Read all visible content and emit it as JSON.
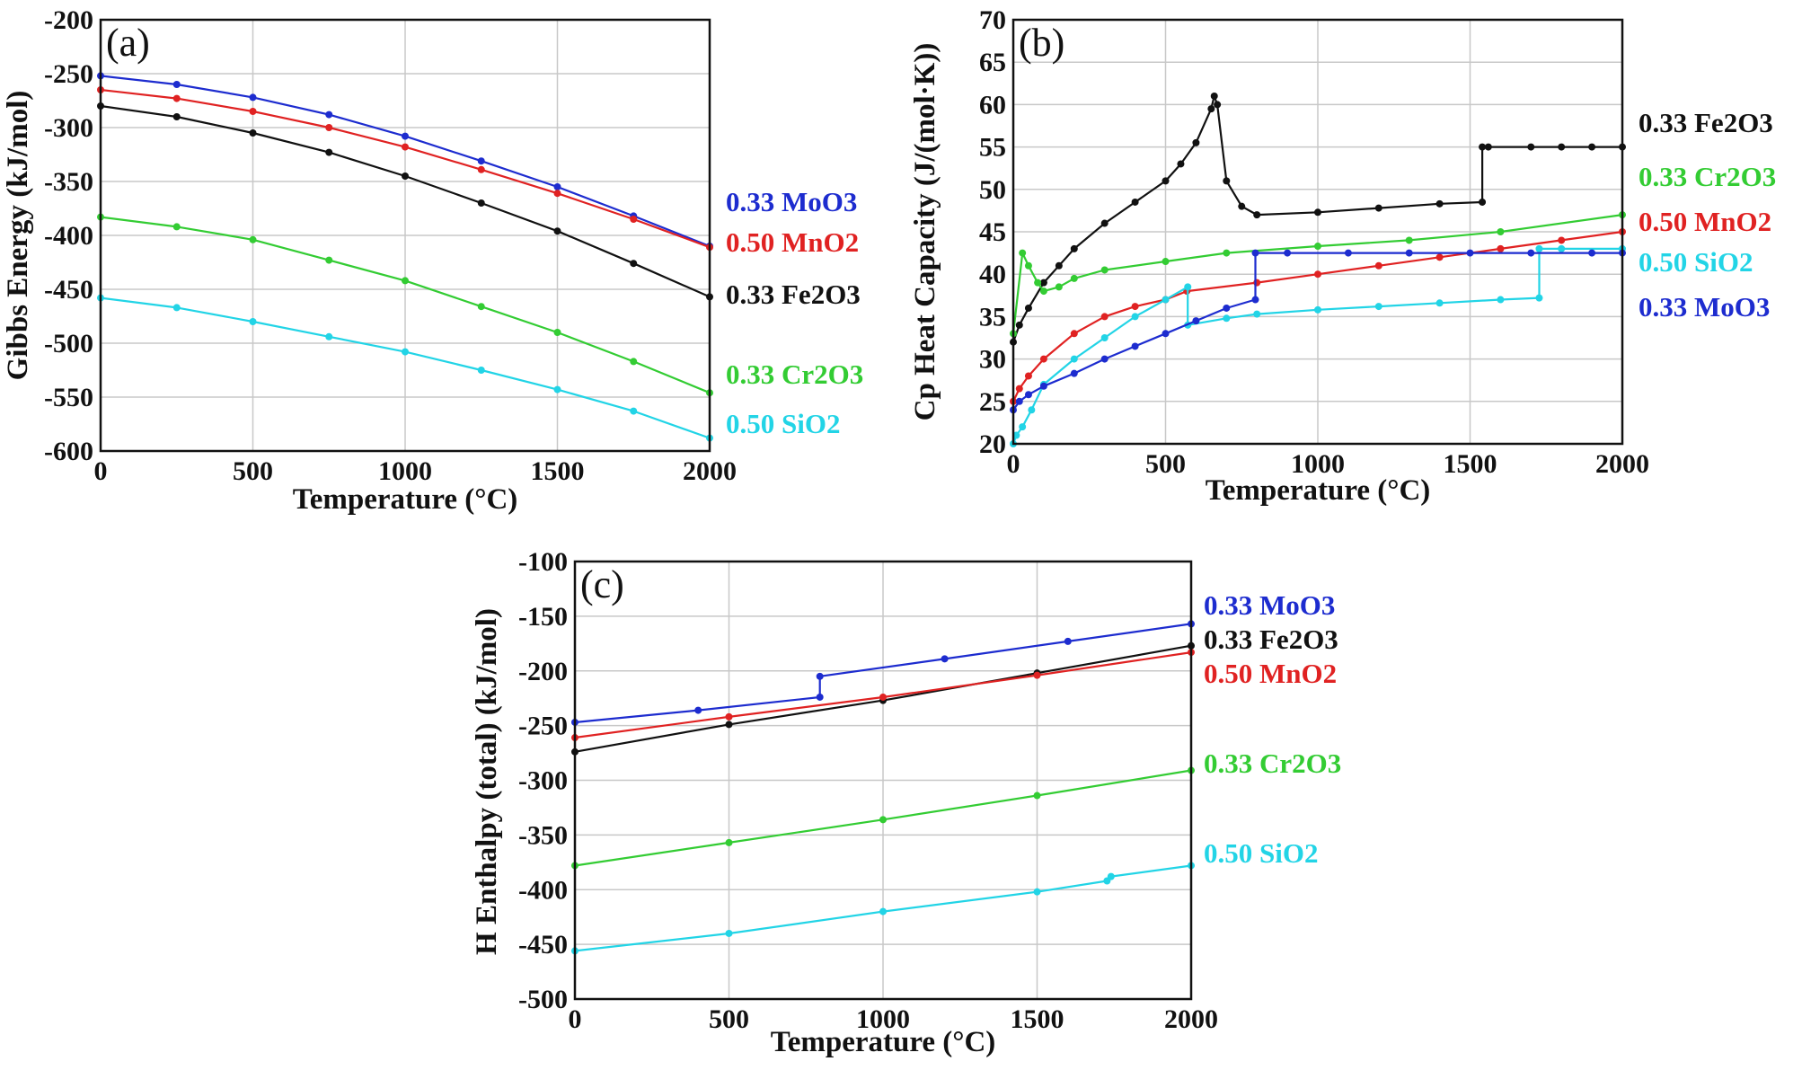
{
  "colors": {
    "MoO3": "#1d2ccf",
    "MnO2": "#e02222",
    "Fe2O3": "#111111",
    "Cr2O3": "#33cc33",
    "SiO2": "#22d4e6"
  },
  "chart_data": [
    {
      "type": "line",
      "panel_label": "(a)",
      "xlabel": "Temperature (°C)",
      "ylabel": "Gibbs Energy (kJ/mol)",
      "xlim": [
        0,
        2000
      ],
      "ylim": [
        -600,
        -200
      ],
      "xticks": [
        0,
        500,
        1000,
        1500,
        2000
      ],
      "yticks": [
        -600,
        -550,
        -500,
        -450,
        -400,
        -350,
        -300,
        -250,
        -200
      ],
      "grid": true,
      "series": [
        {
          "name": "0.33 MoO3",
          "color_key": "MoO3",
          "x": [
            0,
            250,
            500,
            750,
            1000,
            1250,
            1500,
            1750,
            2000
          ],
          "y": [
            -252,
            -260,
            -272,
            -288,
            -308,
            -331,
            -355,
            -382,
            -410
          ]
        },
        {
          "name": "0.50 MnO2",
          "color_key": "MnO2",
          "x": [
            0,
            250,
            500,
            750,
            1000,
            1250,
            1500,
            1750,
            2000
          ],
          "y": [
            -265,
            -273,
            -285,
            -300,
            -318,
            -339,
            -361,
            -385,
            -411
          ]
        },
        {
          "name": "0.33 Fe2O3",
          "color_key": "Fe2O3",
          "x": [
            0,
            250,
            500,
            750,
            1000,
            1250,
            1500,
            1750,
            2000
          ],
          "y": [
            -280,
            -290,
            -305,
            -323,
            -345,
            -370,
            -396,
            -426,
            -457
          ]
        },
        {
          "name": "0.33 Cr2O3",
          "color_key": "Cr2O3",
          "x": [
            0,
            250,
            500,
            750,
            1000,
            1250,
            1500,
            1750,
            2000
          ],
          "y": [
            -383,
            -392,
            -404,
            -423,
            -442,
            -466,
            -490,
            -517,
            -546
          ]
        },
        {
          "name": "0.50 SiO2",
          "color_key": "SiO2",
          "x": [
            0,
            250,
            500,
            750,
            1000,
            1250,
            1500,
            1750,
            2000
          ],
          "y": [
            -458,
            -467,
            -480,
            -494,
            -508,
            -525,
            -543,
            -563,
            -588
          ]
        }
      ]
    },
    {
      "type": "line",
      "panel_label": "(b)",
      "xlabel": "Temperature (°C)",
      "ylabel": "Cp Heat Capacity (J/(mol·K))",
      "xlim": [
        0,
        2000
      ],
      "ylim": [
        20,
        70
      ],
      "xticks": [
        0,
        500,
        1000,
        1500,
        2000
      ],
      "yticks": [
        20,
        25,
        30,
        35,
        40,
        45,
        50,
        55,
        60,
        65,
        70
      ],
      "grid": true,
      "series": [
        {
          "name": "0.33 Fe2O3",
          "color_key": "Fe2O3",
          "x": [
            0,
            20,
            50,
            100,
            150,
            200,
            300,
            400,
            500,
            550,
            600,
            650,
            660,
            670,
            700,
            750,
            800,
            1000,
            1200,
            1400,
            1540,
            1540,
            1560,
            1700,
            1800,
            1900,
            2000
          ],
          "y": [
            32,
            34,
            36,
            39,
            41,
            43,
            46,
            48.5,
            51,
            53,
            55.5,
            59.5,
            61,
            60,
            51,
            48,
            47,
            47.3,
            47.8,
            48.3,
            48.5,
            55,
            55,
            55,
            55,
            55,
            55
          ]
        },
        {
          "name": "0.33 Cr2O3",
          "color_key": "Cr2O3",
          "x": [
            0,
            30,
            50,
            80,
            100,
            150,
            200,
            300,
            500,
            700,
            1000,
            1300,
            1600,
            2000
          ],
          "y": [
            33,
            42.5,
            41,
            39,
            38,
            38.5,
            39.5,
            40.5,
            41.5,
            42.5,
            43.3,
            44,
            45,
            47
          ]
        },
        {
          "name": "0.50 MnO2",
          "color_key": "MnO2",
          "x": [
            0,
            20,
            50,
            100,
            200,
            300,
            400,
            500,
            570,
            800,
            1000,
            1200,
            1400,
            1600,
            1800,
            2000
          ],
          "y": [
            25,
            26.5,
            28,
            30,
            33,
            35,
            36.2,
            37,
            38,
            39,
            40,
            41,
            42,
            43,
            44,
            45
          ]
        },
        {
          "name": "0.50 SiO2",
          "color_key": "SiO2",
          "x": [
            0,
            10,
            30,
            60,
            100,
            200,
            300,
            400,
            500,
            573,
            573,
            700,
            800,
            1000,
            1200,
            1400,
            1600,
            1727,
            1727,
            1800,
            2000
          ],
          "y": [
            20,
            21,
            22,
            24,
            27,
            30,
            32.5,
            35,
            37,
            38.5,
            34,
            34.8,
            35.3,
            35.8,
            36.2,
            36.6,
            37,
            37.2,
            43,
            43,
            43
          ]
        },
        {
          "name": "0.33 MoO3",
          "color_key": "MoO3",
          "x": [
            0,
            20,
            50,
            100,
            200,
            300,
            400,
            500,
            600,
            700,
            795,
            795,
            900,
            1100,
            1300,
            1500,
            1700,
            1900,
            2000
          ],
          "y": [
            24,
            25,
            25.8,
            26.8,
            28.3,
            30,
            31.5,
            33,
            34.5,
            36,
            37,
            42.5,
            42.5,
            42.5,
            42.5,
            42.5,
            42.5,
            42.5,
            42.5
          ]
        }
      ]
    },
    {
      "type": "line",
      "panel_label": "(c)",
      "xlabel": "Temperature (°C)",
      "ylabel": "H Enthalpy (total) (kJ/mol)",
      "xlim": [
        0,
        2000
      ],
      "ylim": [
        -500,
        -100
      ],
      "xticks": [
        0,
        500,
        1000,
        1500,
        2000
      ],
      "yticks": [
        -500,
        -450,
        -400,
        -350,
        -300,
        -250,
        -200,
        -150,
        -100
      ],
      "grid": true,
      "series": [
        {
          "name": "0.33 MoO3",
          "color_key": "MoO3",
          "x": [
            0,
            400,
            795,
            795,
            1200,
            1600,
            2000
          ],
          "y": [
            -247,
            -236,
            -224,
            -205,
            -189,
            -173,
            -157
          ]
        },
        {
          "name": "0.33 Fe2O3",
          "color_key": "Fe2O3",
          "x": [
            0,
            500,
            1000,
            1500,
            2000
          ],
          "y": [
            -274,
            -249,
            -227,
            -202,
            -177
          ]
        },
        {
          "name": "0.50 MnO2",
          "color_key": "MnO2",
          "x": [
            0,
            500,
            1000,
            1500,
            2000
          ],
          "y": [
            -261,
            -242,
            -224,
            -204,
            -183
          ]
        },
        {
          "name": "0.33 Cr2O3",
          "color_key": "Cr2O3",
          "x": [
            0,
            500,
            1000,
            1500,
            2000
          ],
          "y": [
            -378,
            -357,
            -336,
            -314,
            -291
          ]
        },
        {
          "name": "0.50 SiO2",
          "color_key": "SiO2",
          "x": [
            0,
            500,
            1000,
            1500,
            1727,
            1740,
            2000
          ],
          "y": [
            -456,
            -440,
            -420,
            -402,
            -392,
            -388,
            -378
          ]
        }
      ]
    }
  ]
}
